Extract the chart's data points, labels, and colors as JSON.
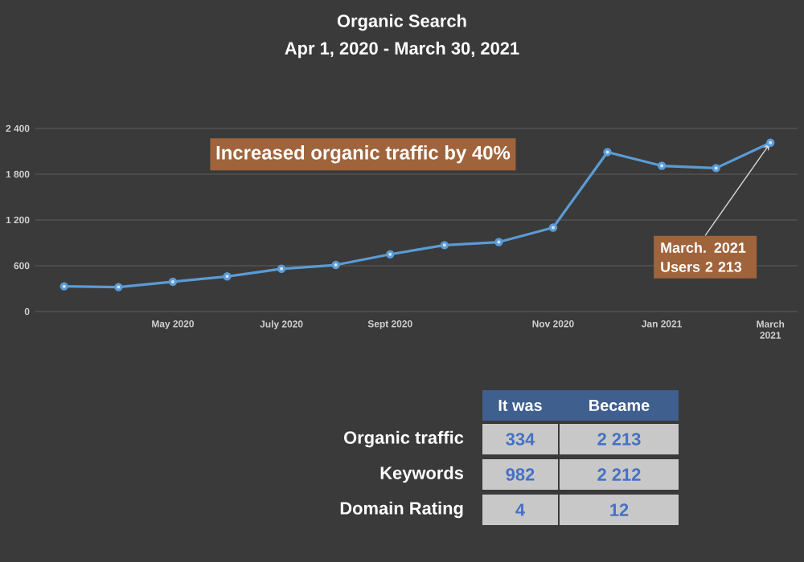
{
  "chart_data": {
    "type": "line",
    "title": "Organic Search",
    "subtitle": "Apr 1, 2020 - March 30, 2021",
    "categories": [
      null,
      null,
      "May 2020",
      null,
      "July 2020",
      null,
      "Sept 2020",
      null,
      null,
      "Nov 2020",
      null,
      "Jan 2021",
      null,
      "March 2021"
    ],
    "series": [
      {
        "color": "#5b9bd5",
        "values": [
          330,
          320,
          390,
          460,
          560,
          610,
          750,
          870,
          910,
          1100,
          2090,
          1910,
          1880,
          2213
        ]
      }
    ],
    "ylim": [
      0,
      2400
    ],
    "yticks": [
      0,
      600,
      {
        "value": 1200,
        "label": "1 200"
      },
      {
        "value": 1800,
        "label": "1 800"
      },
      {
        "value": 2400,
        "label": "2 400"
      }
    ],
    "grid": "y",
    "marker": "circle",
    "line_style": "solid",
    "annotations": [
      "Increased organic traffic by 40%",
      {
        "text": "March. 2021 Users 2 213",
        "x": "March 2021",
        "y": 2213
      },
      "It was",
      "Became",
      "Organic traffic",
      "334",
      "2 213",
      "Keywords",
      "982",
      "2 212",
      "Domain Rating",
      "4",
      "12"
    ]
  }
}
